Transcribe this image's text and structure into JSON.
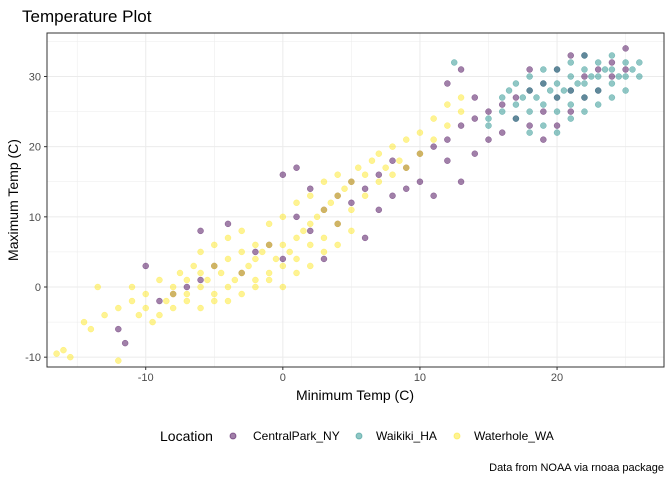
{
  "chart_data": {
    "type": "scatter",
    "title": "Temperature Plot",
    "xlabel": "Minimum Temp (C)",
    "ylabel": "Maximum Temp (C)",
    "caption": "Data from NOAA via rnoaa package",
    "xlim": [
      -17.2,
      27.8
    ],
    "ylim": [
      -11.4,
      36.2
    ],
    "x_ticks": [
      -10,
      0,
      10,
      20
    ],
    "x_tick_labels": [
      "-10",
      "0",
      "10",
      "20"
    ],
    "y_ticks": [
      -10,
      0,
      10,
      20,
      30
    ],
    "y_tick_labels": [
      "-10",
      "0",
      "10",
      "20",
      "30"
    ],
    "grid": true,
    "legend": {
      "title": "Location",
      "position": "bottom",
      "items": [
        "CentralPark_NY",
        "Waikiki_HA",
        "Waterhole_WA"
      ]
    },
    "series": [
      {
        "name": "CentralPark_NY",
        "color": "#440154",
        "opacity": 0.5,
        "points": [
          [
            -12,
            -6
          ],
          [
            -11.5,
            -8
          ],
          [
            -10,
            3
          ],
          [
            -9,
            -2
          ],
          [
            -8,
            -1
          ],
          [
            -7,
            0
          ],
          [
            -6,
            1
          ],
          [
            -5,
            3
          ],
          [
            -6,
            8
          ],
          [
            -4,
            9
          ],
          [
            -3,
            2
          ],
          [
            -2,
            5
          ],
          [
            -1,
            6
          ],
          [
            0,
            4
          ],
          [
            0,
            16
          ],
          [
            1,
            17
          ],
          [
            1,
            10
          ],
          [
            2,
            8
          ],
          [
            2,
            14
          ],
          [
            3,
            11
          ],
          [
            3,
            4
          ],
          [
            4,
            9
          ],
          [
            4,
            13
          ],
          [
            5,
            12
          ],
          [
            5,
            15
          ],
          [
            6,
            14
          ],
          [
            6,
            7
          ],
          [
            7,
            11
          ],
          [
            7,
            16
          ],
          [
            8,
            13
          ],
          [
            8,
            18
          ],
          [
            9,
            17
          ],
          [
            9,
            14
          ],
          [
            10,
            19
          ],
          [
            10,
            15
          ],
          [
            11,
            20
          ],
          [
            11,
            13
          ],
          [
            12,
            18
          ],
          [
            12,
            21
          ],
          [
            13,
            15
          ],
          [
            13,
            23
          ],
          [
            14,
            19
          ],
          [
            14,
            24
          ],
          [
            15,
            21
          ],
          [
            15,
            25
          ],
          [
            16,
            22
          ],
          [
            16,
            26
          ],
          [
            17,
            24
          ],
          [
            17,
            27
          ],
          [
            18,
            23
          ],
          [
            18,
            28
          ],
          [
            19,
            25
          ],
          [
            19,
            29
          ],
          [
            20,
            27
          ],
          [
            20,
            31
          ],
          [
            21,
            28
          ],
          [
            21,
            25
          ],
          [
            22,
            30
          ],
          [
            22,
            33
          ],
          [
            23,
            31
          ],
          [
            23,
            28
          ],
          [
            24,
            32
          ],
          [
            24,
            30
          ],
          [
            25,
            34
          ],
          [
            25,
            31
          ],
          [
            18,
            31
          ],
          [
            19,
            21
          ],
          [
            20,
            23
          ],
          [
            21,
            33
          ],
          [
            22,
            27
          ],
          [
            14,
            27
          ],
          [
            13,
            31
          ],
          [
            12,
            29
          ]
        ]
      },
      {
        "name": "Waikiki_HA",
        "color": "#21908C",
        "opacity": 0.5,
        "points": [
          [
            12.5,
            32
          ],
          [
            15,
            24
          ],
          [
            16,
            27
          ],
          [
            16.5,
            28
          ],
          [
            17,
            26
          ],
          [
            17,
            29
          ],
          [
            17.5,
            27
          ],
          [
            18,
            25
          ],
          [
            18,
            28
          ],
          [
            18,
            30
          ],
          [
            18.5,
            27
          ],
          [
            19,
            26
          ],
          [
            19,
            29
          ],
          [
            19,
            31
          ],
          [
            19.5,
            28
          ],
          [
            20,
            25
          ],
          [
            20,
            27
          ],
          [
            20,
            29
          ],
          [
            20,
            31
          ],
          [
            20.5,
            28
          ],
          [
            21,
            26
          ],
          [
            21,
            28
          ],
          [
            21,
            30
          ],
          [
            21,
            32
          ],
          [
            21.5,
            29
          ],
          [
            22,
            27
          ],
          [
            22,
            29
          ],
          [
            22,
            31
          ],
          [
            22,
            33
          ],
          [
            22.5,
            30
          ],
          [
            23,
            28
          ],
          [
            23,
            30
          ],
          [
            23,
            32
          ],
          [
            23.5,
            31
          ],
          [
            24,
            29
          ],
          [
            24,
            31
          ],
          [
            24,
            33
          ],
          [
            24.5,
            30
          ],
          [
            25,
            30
          ],
          [
            25,
            32
          ],
          [
            25.5,
            31
          ],
          [
            26,
            30
          ],
          [
            19,
            23
          ],
          [
            20,
            22
          ],
          [
            21,
            24
          ],
          [
            22,
            25
          ],
          [
            23,
            26
          ],
          [
            18,
            22
          ],
          [
            17,
            24
          ],
          [
            16,
            25
          ],
          [
            15,
            23
          ],
          [
            24,
            27
          ],
          [
            25,
            28
          ],
          [
            26,
            32
          ]
        ]
      },
      {
        "name": "Waterhole_WA",
        "color": "#FDE725",
        "opacity": 0.5,
        "points": [
          [
            -16.5,
            -9.5
          ],
          [
            -16,
            -9
          ],
          [
            -15.5,
            -10
          ],
          [
            -14.5,
            -5
          ],
          [
            -14,
            -6
          ],
          [
            -13.5,
            0
          ],
          [
            -13,
            -4
          ],
          [
            -12,
            -10.5
          ],
          [
            -12,
            -3
          ],
          [
            -11,
            -2
          ],
          [
            -11,
            0
          ],
          [
            -10.5,
            -4
          ],
          [
            -10,
            -1
          ],
          [
            -10,
            -3
          ],
          [
            -9.5,
            -5
          ],
          [
            -9,
            -4
          ],
          [
            -9,
            1
          ],
          [
            -8.5,
            -2
          ],
          [
            -8,
            0
          ],
          [
            -8,
            -3
          ],
          [
            -7.5,
            2
          ],
          [
            -7,
            -1
          ],
          [
            -7,
            1
          ],
          [
            -6.5,
            3
          ],
          [
            -6,
            0
          ],
          [
            -6,
            2
          ],
          [
            -6,
            5
          ],
          [
            -5.5,
            1
          ],
          [
            -5,
            -1
          ],
          [
            -5,
            3
          ],
          [
            -5,
            6
          ],
          [
            -4.5,
            2
          ],
          [
            -4,
            0
          ],
          [
            -4,
            4
          ],
          [
            -4,
            7
          ],
          [
            -3.5,
            1
          ],
          [
            -3,
            2
          ],
          [
            -3,
            5
          ],
          [
            -3,
            8
          ],
          [
            -2.5,
            3
          ],
          [
            -2,
            1
          ],
          [
            -2,
            4
          ],
          [
            -2,
            6
          ],
          [
            -1.5,
            5
          ],
          [
            -1,
            2
          ],
          [
            -1,
            6
          ],
          [
            -1,
            9
          ],
          [
            -0.5,
            4
          ],
          [
            0,
            3
          ],
          [
            0,
            6
          ],
          [
            0,
            10
          ],
          [
            0.5,
            5
          ],
          [
            1,
            4
          ],
          [
            1,
            7
          ],
          [
            1,
            12
          ],
          [
            1.5,
            8
          ],
          [
            2,
            6
          ],
          [
            2,
            9
          ],
          [
            2,
            13
          ],
          [
            2.5,
            10
          ],
          [
            3,
            7
          ],
          [
            3,
            11
          ],
          [
            3,
            15
          ],
          [
            3.5,
            12
          ],
          [
            4,
            9
          ],
          [
            4,
            13
          ],
          [
            4,
            16
          ],
          [
            4.5,
            14
          ],
          [
            5,
            11
          ],
          [
            5,
            15
          ],
          [
            5.5,
            17
          ],
          [
            6,
            13
          ],
          [
            6,
            16
          ],
          [
            6.5,
            18
          ],
          [
            7,
            15
          ],
          [
            7,
            19
          ],
          [
            7.5,
            17
          ],
          [
            8,
            16
          ],
          [
            8,
            20
          ],
          [
            8.5,
            18
          ],
          [
            9,
            17
          ],
          [
            9,
            21
          ],
          [
            10,
            19
          ],
          [
            10,
            22
          ],
          [
            11,
            21
          ],
          [
            11,
            24
          ],
          [
            12,
            23
          ],
          [
            12,
            26
          ],
          [
            13,
            25
          ],
          [
            13,
            27
          ],
          [
            -3,
            -1
          ],
          [
            -2,
            0
          ],
          [
            -1,
            1
          ],
          [
            0,
            0
          ],
          [
            1,
            2
          ],
          [
            -4,
            -2
          ],
          [
            -5,
            -2
          ],
          [
            -6,
            -3
          ],
          [
            -7,
            -2
          ],
          [
            -8,
            -1
          ],
          [
            2,
            3
          ],
          [
            3,
            5
          ],
          [
            4,
            6
          ],
          [
            5,
            8
          ]
        ]
      }
    ]
  }
}
